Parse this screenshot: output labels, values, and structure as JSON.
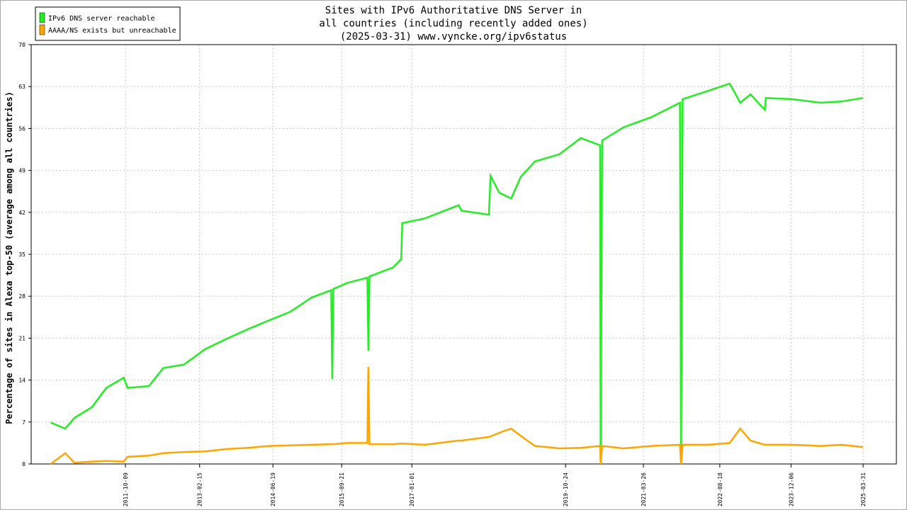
{
  "chart_data": {
    "type": "line",
    "title": [
      "Sites with IPv6 Authoritative DNS Server in",
      "all countries (including recently added ones)",
      "(2025-03-31) www.vyncke.org/ipv6status"
    ],
    "y_label": "Percentage of sites in Alexa top-50 (average among all countries)",
    "x": [
      "2010-05-29",
      "2010-09-02",
      "2010-11-03",
      "2011-02-28",
      "2011-06-03",
      "2011-09-28",
      "2011-10-23",
      "2012-03-14",
      "2012-06-17",
      "2012-11-03",
      "2013-03-26",
      "2013-08-15",
      "2014-01-04",
      "2014-05-27",
      "2014-10-13",
      "2015-03-05",
      "2015-07-13",
      "2015-07-20",
      "2015-07-27",
      "2015-10-26",
      "2016-03-10",
      "2016-03-17",
      "2016-03-24",
      "2016-08-28",
      "2016-10-22",
      "2016-10-29",
      "2017-03-29",
      "2017-11-10",
      "2017-11-28",
      "2018-05-30",
      "2018-06-10",
      "2018-08-07",
      "2018-10-26",
      "2018-12-28",
      "2019-04-02",
      "2019-09-13",
      "2020-02-02",
      "2020-06-10",
      "2020-06-14",
      "2020-06-24",
      "2020-11-13",
      "2021-05-19",
      "2021-11-25",
      "2021-12-02",
      "2021-12-13",
      "2022-06-03",
      "2022-10-23",
      "2023-01-01",
      "2023-03-11",
      "2023-06-14",
      "2023-06-21",
      "2023-12-13",
      "2024-06-21",
      "2024-11-06",
      "2025-03-31"
    ],
    "series": [
      {
        "name": "IPv6 DNS server reachable",
        "color": "#22ee22",
        "values": [
          6.9,
          5.9,
          7.7,
          9.5,
          12.7,
          14.4,
          12.7,
          13.0,
          16.0,
          16.6,
          19.2,
          20.9,
          22.5,
          24.0,
          25.4,
          27.8,
          29.0,
          14.2,
          29.2,
          30.2,
          31.1,
          18.9,
          31.3,
          32.8,
          34.2,
          40.2,
          41.0,
          43.2,
          42.3,
          41.6,
          48.1,
          45.3,
          44.3,
          47.9,
          50.5,
          51.7,
          54.4,
          53.2,
          0,
          54.0,
          56.2,
          57.9,
          60.3,
          0,
          60.9,
          62.3,
          63.5,
          60.3,
          61.7,
          59.1,
          61.1,
          60.9,
          60.3,
          60.5,
          61.1
        ]
      },
      {
        "name": "AAAA/NS exists but unreachable",
        "color": "#ffa500",
        "values": [
          0,
          1.8,
          0.2,
          0.4,
          0.5,
          0.4,
          1.2,
          1.4,
          1.8,
          2.0,
          2.1,
          2.5,
          2.7,
          3.0,
          3.1,
          3.2,
          3.3,
          3.3,
          3.3,
          3.5,
          3.5,
          16.2,
          3.3,
          3.3,
          3.4,
          3.4,
          3.2,
          3.9,
          3.9,
          4.5,
          4.6,
          5.2,
          5.9,
          4.7,
          3.0,
          2.6,
          2.7,
          3.0,
          0,
          3.0,
          2.6,
          3.0,
          3.2,
          0,
          3.2,
          3.2,
          3.5,
          5.9,
          3.9,
          3.2,
          3.2,
          3.2,
          3.0,
          3.2,
          2.8
        ]
      }
    ],
    "xlim": [
      "2010-01-18",
      "2025-11-08"
    ],
    "xticks": [
      "2011-10-09",
      "2013-02-15",
      "2014-06-19",
      "2015-09-21",
      "2017-01-01",
      "2019-10-24",
      "2021-03-26",
      "2022-08-18",
      "2023-12-06",
      "2025-03-31"
    ],
    "ylim": [
      0,
      70
    ],
    "yticks": [
      0,
      7,
      14,
      21,
      28,
      35,
      42,
      49,
      56,
      63,
      70
    ],
    "grid": true,
    "legend": "top-left"
  }
}
